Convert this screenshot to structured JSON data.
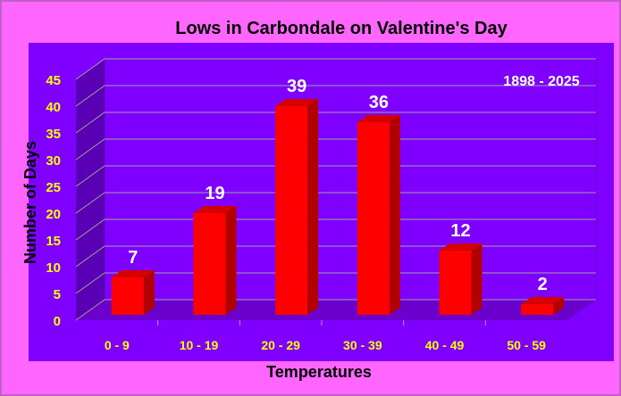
{
  "chart_data": {
    "type": "bar",
    "title": "Lows in Carbondale on Valentine's Day",
    "annotation": "1898 - 2025",
    "xlabel": "Temperatures",
    "ylabel": "Number of Days",
    "categories": [
      "0 - 9",
      "10 - 19",
      "20 - 29",
      "30 - 39",
      "40 - 49",
      "50 - 59"
    ],
    "values": [
      7,
      19,
      39,
      36,
      12,
      2
    ],
    "ylim": [
      0,
      45
    ],
    "yticks": [
      0,
      5,
      10,
      15,
      20,
      25,
      30,
      35,
      40,
      45
    ],
    "grid": true,
    "legend": "none",
    "colors": {
      "page_background": "#ff66ff",
      "plot_background": "#8000ff",
      "plot_wall": "#5a00b4",
      "plot_floor": "#6a00cc",
      "bar_front": "#ff0000",
      "bar_side": "#b00000",
      "bar_top": "#d40000",
      "tick_labels": "#ffff00",
      "data_labels": "#ffffff",
      "gridlines": "#a0a0a0",
      "title_text": "#000000"
    }
  }
}
